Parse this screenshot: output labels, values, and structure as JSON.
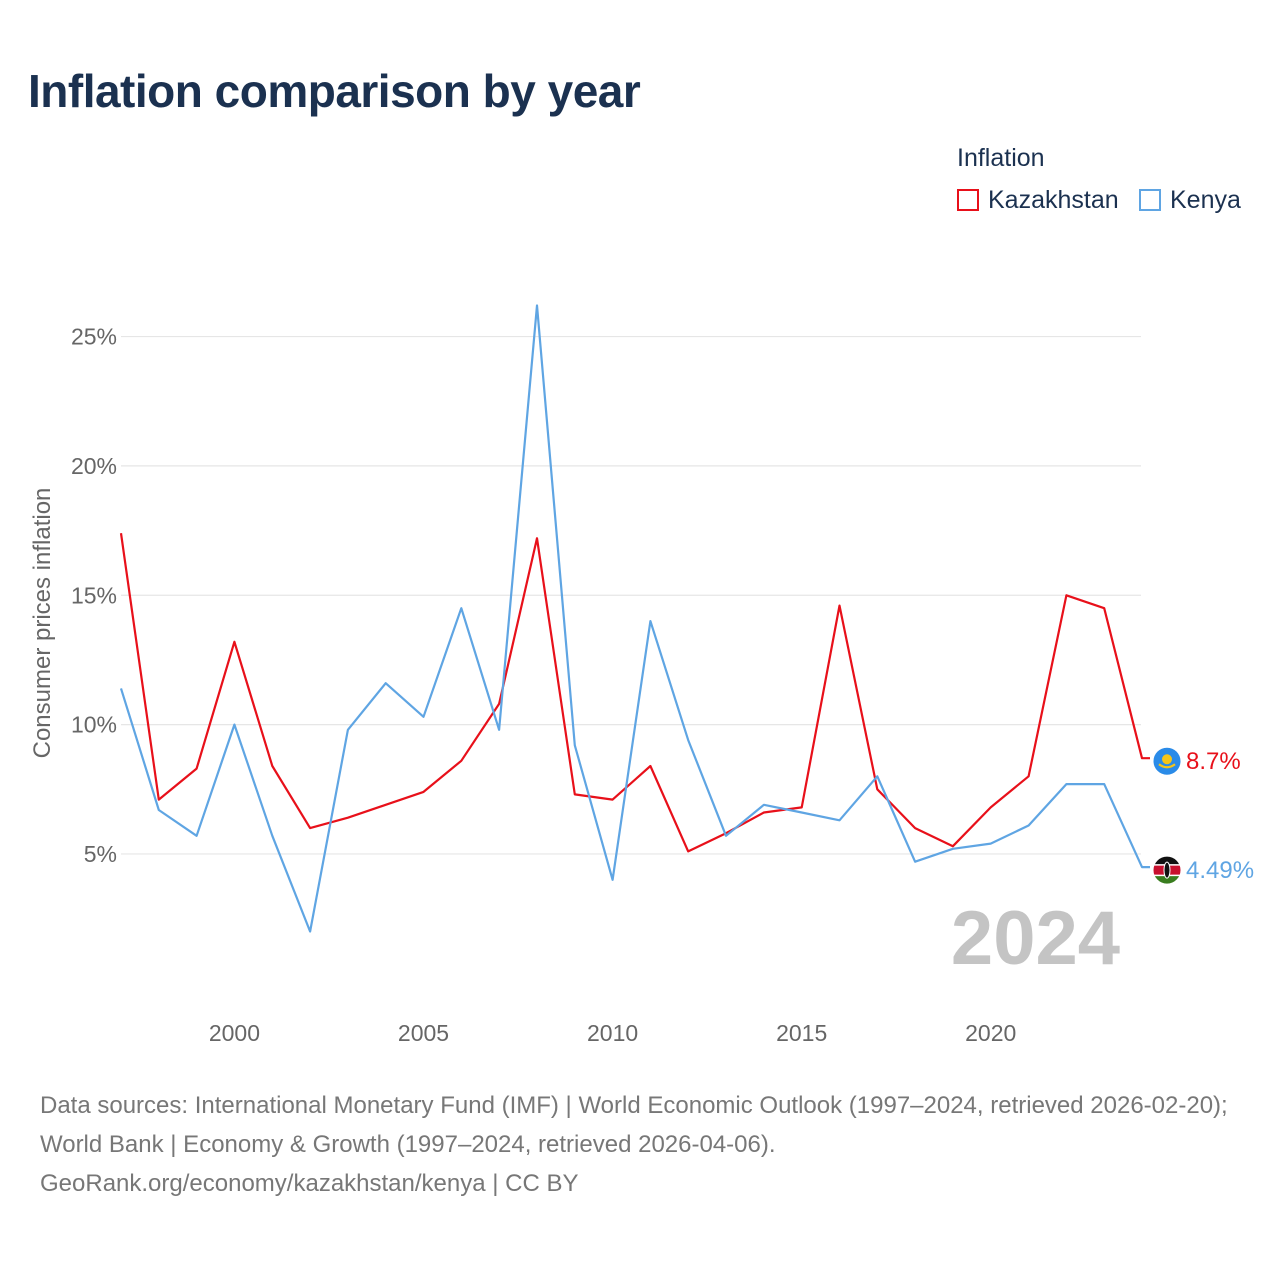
{
  "title": "Inflation comparison by year",
  "legend": {
    "title": "Inflation",
    "items": [
      {
        "label": "Kazakhstan",
        "color": "#e8101a"
      },
      {
        "label": "Kenya",
        "color": "#5fa5e3"
      }
    ]
  },
  "chart_data": {
    "type": "line",
    "title": "Inflation comparison by year",
    "ylabel": "Consumer prices inflation",
    "xlabel": "",
    "x": [
      1997,
      1998,
      1999,
      2000,
      2001,
      2002,
      2003,
      2004,
      2005,
      2006,
      2007,
      2008,
      2009,
      2010,
      2011,
      2012,
      2013,
      2014,
      2015,
      2016,
      2017,
      2018,
      2019,
      2020,
      2021,
      2022,
      2023,
      2024
    ],
    "xlim": [
      1997,
      2024
    ],
    "ylim": [
      0.9,
      26.8
    ],
    "x_ticks": [
      2000,
      2005,
      2010,
      2015,
      2020
    ],
    "y_ticks": [
      5,
      10,
      15,
      20,
      25
    ],
    "y_tick_labels": [
      "5%",
      "10%",
      "15%",
      "20%",
      "25%"
    ],
    "grid": true,
    "year_label": "2024",
    "series": [
      {
        "name": "Kazakhstan",
        "color": "#e8101a",
        "end_label": "8.7%",
        "flag_icon": "kazakhstan-flag-icon",
        "values": [
          17.4,
          7.1,
          8.3,
          13.2,
          8.4,
          6.0,
          6.4,
          6.9,
          7.4,
          8.6,
          10.8,
          17.2,
          7.3,
          7.1,
          8.4,
          5.1,
          5.8,
          6.6,
          6.8,
          14.6,
          7.5,
          6.0,
          5.3,
          6.8,
          8.0,
          15.0,
          14.5,
          8.7
        ]
      },
      {
        "name": "Kenya",
        "color": "#5fa5e3",
        "end_label": "4.49%",
        "flag_icon": "kenya-flag-icon",
        "values": [
          11.4,
          6.7,
          5.7,
          10.0,
          5.7,
          2.0,
          9.8,
          11.6,
          10.3,
          14.5,
          9.8,
          26.2,
          9.2,
          4.0,
          14.0,
          9.4,
          5.7,
          6.9,
          6.6,
          6.3,
          8.0,
          4.7,
          5.2,
          5.4,
          6.1,
          7.7,
          7.7,
          4.49
        ]
      }
    ]
  },
  "source": {
    "line1": "Data sources: International Monetary Fund (IMF) | World Economic Outlook (1997–2024, retrieved 2026-02-20); World Bank | Economy & Growth (1997–2024, retrieved 2026-04-06).",
    "line2": "GeoRank.org/economy/kazakhstan/kenya | CC BY"
  }
}
